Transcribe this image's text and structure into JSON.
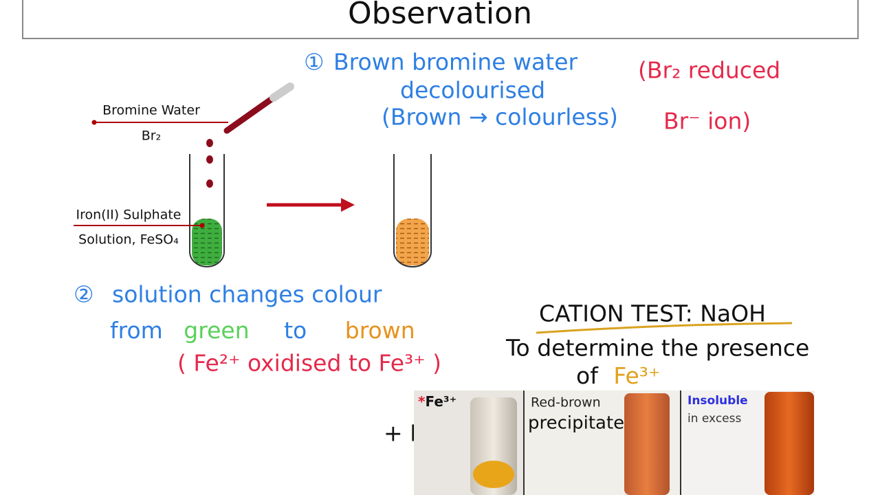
{
  "header": {
    "title": "Observation"
  },
  "diagram": {
    "bromine_label": "Bromine Water",
    "bromine_formula": "Br₂",
    "iron_label": "Iron(II) Sulphate",
    "iron_formula": "Solution, FeSO₄"
  },
  "notes": {
    "observation_1": {
      "number": "①",
      "lines": [
        "Brown bromine water",
        "decolourised",
        "(Brown → colourless)"
      ]
    },
    "side_note": {
      "lines": [
        "(Br₂ reduced",
        "Br⁻ ion)"
      ]
    },
    "observation_2": {
      "number": "②",
      "line_1": "solution changes colour",
      "from": "from",
      "green": "green",
      "to": "to",
      "brown": "brown",
      "line_3": "( Fe²⁺ oxidised to Fe³⁺ )"
    }
  },
  "cation_test": {
    "title": "CATION TEST: NaOH",
    "line_1": "To determine the presence",
    "of": "of",
    "ion": "Fe³⁺",
    "reagent": "+ NaOH",
    "panel": {
      "asterisk": "*",
      "ion": "Fe³⁺",
      "result_1": "Red-brown",
      "result_2": "precipitate",
      "excess_1": "Insoluble",
      "excess_2": "in excess"
    }
  }
}
